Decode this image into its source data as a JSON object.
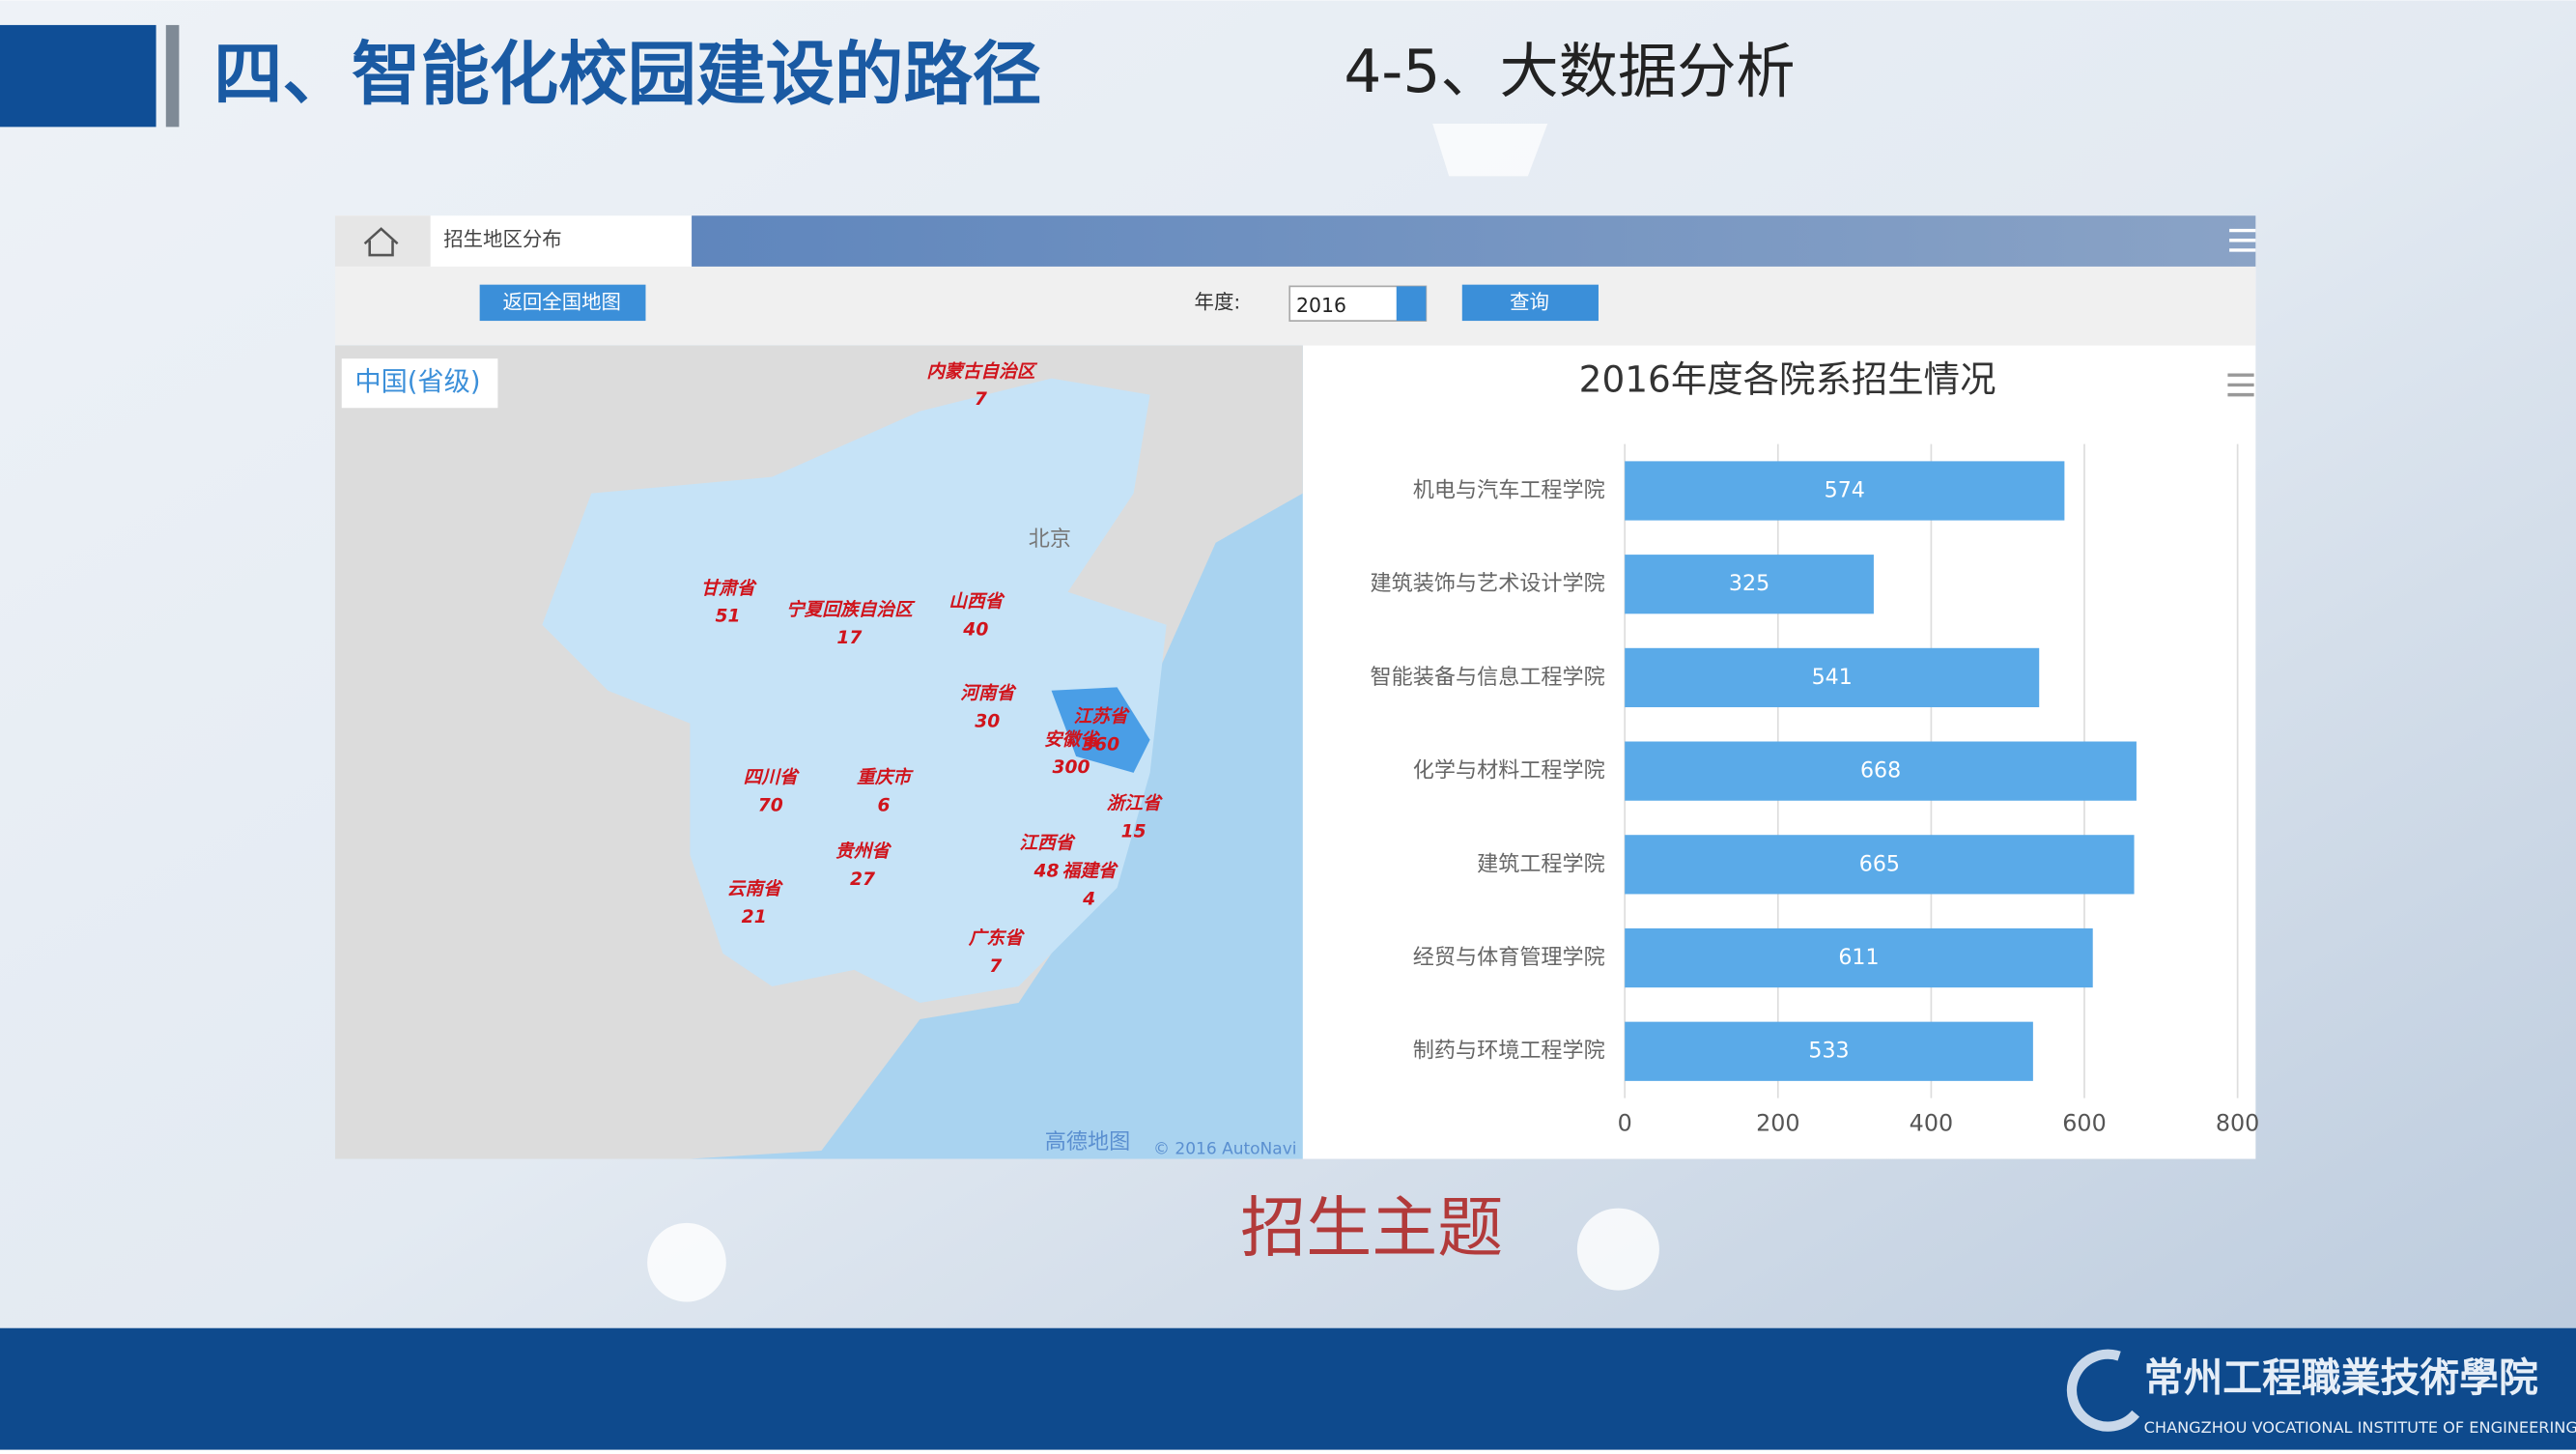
{
  "header": {
    "title": "四、智能化校园建设的路径",
    "subtitle": "4-5、大数据分析"
  },
  "toolbar": {
    "tab": "招生地区分布",
    "back_button": "返回全国地图",
    "year_label": "年度:",
    "year": "2016",
    "query_button": "查询"
  },
  "map": {
    "level": "中国(省级)",
    "capital": "北京",
    "attribution": "高德地图",
    "copyright": "© 2016 AutoNavi",
    "labels": [
      {
        "name": "内蒙古自治区",
        "value": "7"
      },
      {
        "name": "甘肃省",
        "value": "51"
      },
      {
        "name": "宁夏回族自治区",
        "value": "17"
      },
      {
        "name": "山西省",
        "value": "40"
      },
      {
        "name": "河南省",
        "value": "30"
      },
      {
        "name": "江苏省",
        "value": "360"
      },
      {
        "name": "安徽省",
        "value": "300"
      },
      {
        "name": "四川省",
        "value": "70"
      },
      {
        "name": "重庆市",
        "value": "6"
      },
      {
        "name": "浙江省",
        "value": "15"
      },
      {
        "name": "江西省",
        "value": "48"
      },
      {
        "name": "福建省",
        "value": "4"
      },
      {
        "name": "贵州省",
        "value": "27"
      },
      {
        "name": "云南省",
        "value": "21"
      },
      {
        "name": "广东省",
        "value": "7"
      }
    ]
  },
  "chart_data": {
    "type": "bar",
    "orientation": "horizontal",
    "title": "2016年度各院系招生情况",
    "categories": [
      "机电与汽车工程学院",
      "建筑装饰与艺术设计学院",
      "智能装备与信息工程学院",
      "化学与材料工程学院",
      "建筑工程学院",
      "经贸与体育管理学院",
      "制药与环境工程学院"
    ],
    "values": [
      574,
      325,
      541,
      668,
      665,
      611,
      533
    ],
    "color": "#5aaae8",
    "xlim": [
      0,
      800
    ],
    "xticks": [
      0,
      200,
      400,
      600,
      800
    ],
    "grid": true
  },
  "caption": "招生主题",
  "footer": {
    "school": "常州工程職業技術學院",
    "school_en": "CHANGZHOU VOCATIONAL INSTITUTE OF ENGINEERING"
  }
}
